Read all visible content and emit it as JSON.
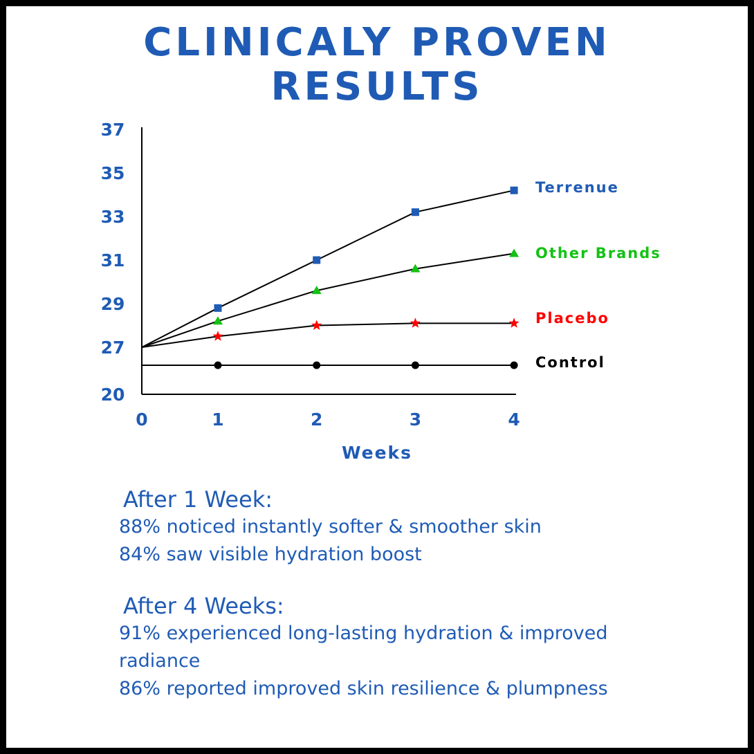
{
  "title_lines": [
    "CLINICALY PROVEN",
    "RESULTS"
  ],
  "chart_data": {
    "type": "line",
    "xlabel": "Weeks",
    "ylabel": "",
    "x": [
      0,
      1,
      2,
      3,
      4
    ],
    "x_ticks": [
      "0",
      "1",
      "2",
      "3",
      "4"
    ],
    "y_ticks": [
      "20",
      "27",
      "29",
      "31",
      "33",
      "35",
      "37"
    ],
    "y_axis_note": "broken axis: 20 at bottom, then 27 to 37",
    "series": [
      {
        "name": "Terrenue",
        "marker": "square",
        "color": "#1f5bb5",
        "values": [
          27,
          28.8,
          31.0,
          33.2,
          34.2
        ]
      },
      {
        "name": "Other Brands",
        "marker": "triangle",
        "color": "#13c213",
        "values": [
          27,
          28.2,
          29.6,
          30.6,
          31.3
        ]
      },
      {
        "name": "Placebo",
        "marker": "star",
        "color": "#ff0000",
        "values": [
          27,
          27.5,
          28.0,
          28.1,
          28.1
        ]
      },
      {
        "name": "Control",
        "marker": "circle",
        "color": "#000000",
        "values": [
          26.2,
          26.2,
          26.2,
          26.2,
          26.2
        ]
      }
    ],
    "grid": false,
    "legend_position": "right"
  },
  "week1": {
    "heading": "After 1 Week:",
    "lines": [
      "88% noticed instantly softer & smoother skin",
      "84% saw visible hydration boost"
    ]
  },
  "week4": {
    "heading": "After 4 Weeks:",
    "lines": [
      "91% experienced long-lasting hydration & improved",
      "radiance",
      "86% reported improved skin resilience & plumpness"
    ]
  }
}
